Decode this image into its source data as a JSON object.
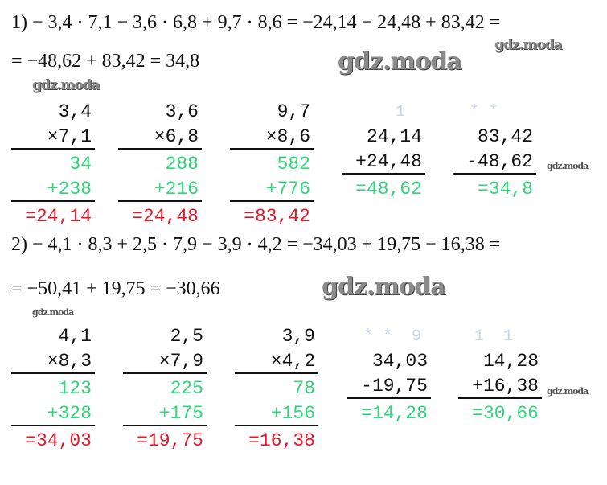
{
  "watermark": "gdz.moda",
  "problems": [
    {
      "equation_lines": [
        "1) − 3,4 · 7,1 − 3,6 · 6,8 + 9,7 · 8,6 = −24,14 − 24,48 + 83,42 =",
        "= −48,62 + 83,42 = 34,8"
      ],
      "columns": [
        {
          "rows": [
            {
              "text": "3,4",
              "color": "black"
            },
            {
              "text": "×7,1",
              "color": "black",
              "rule": true
            },
            {
              "text": "34",
              "color": "green"
            },
            {
              "text": "+238",
              "color": "green",
              "rule": true
            },
            {
              "text": "=24,14",
              "color": "red"
            }
          ]
        },
        {
          "rows": [
            {
              "text": "3,6",
              "color": "black"
            },
            {
              "text": "×6,8",
              "color": "black",
              "rule": true
            },
            {
              "text": "288",
              "color": "green"
            },
            {
              "text": "+216",
              "color": "green",
              "rule": true
            },
            {
              "text": "=24,48",
              "color": "red"
            }
          ]
        },
        {
          "rows": [
            {
              "text": "9,7",
              "color": "black"
            },
            {
              "text": "×8,6",
              "color": "black",
              "rule": true
            },
            {
              "text": "582",
              "color": "green"
            },
            {
              "text": "+776",
              "color": "green",
              "rule": true
            },
            {
              "text": "=83,42",
              "color": "red"
            }
          ]
        },
        {
          "carry": "1",
          "rows": [
            {
              "text": "24,14",
              "color": "black"
            },
            {
              "text": "+24,48",
              "color": "black",
              "rule": true
            },
            {
              "text": "=48,62",
              "color": "green"
            }
          ]
        },
        {
          "carry": "* *",
          "rows": [
            {
              "text": "83,42",
              "color": "black"
            },
            {
              "text": "-48,62",
              "color": "black",
              "rule": true
            },
            {
              "text": "=34,8",
              "color": "green"
            }
          ]
        }
      ]
    },
    {
      "equation_lines": [
        "2) − 4,1 · 8,3 + 2,5 · 7,9 − 3,9 · 4,2 = −34,03 + 19,75 − 16,38 =",
        "= −50,41 + 19,75 = −30,66"
      ],
      "columns": [
        {
          "rows": [
            {
              "text": "4,1",
              "color": "black"
            },
            {
              "text": "×8,3",
              "color": "black",
              "rule": true
            },
            {
              "text": "123",
              "color": "green"
            },
            {
              "text": "+328",
              "color": "green",
              "rule": true
            },
            {
              "text": "=34,03",
              "color": "red"
            }
          ]
        },
        {
          "rows": [
            {
              "text": "2,5",
              "color": "black"
            },
            {
              "text": "×7,9",
              "color": "black",
              "rule": true
            },
            {
              "text": "225",
              "color": "green"
            },
            {
              "text": "+175",
              "color": "green",
              "rule": true
            },
            {
              "text": "=19,75",
              "color": "red"
            }
          ]
        },
        {
          "rows": [
            {
              "text": "3,9",
              "color": "black"
            },
            {
              "text": "×4,2",
              "color": "black",
              "rule": true
            },
            {
              "text": "78",
              "color": "green"
            },
            {
              "text": "+156",
              "color": "green",
              "rule": true
            },
            {
              "text": "=16,38",
              "color": "red"
            }
          ]
        },
        {
          "carry": "* *  9",
          "rows": [
            {
              "text": "34,03",
              "color": "black"
            },
            {
              "text": "-19,75",
              "color": "black",
              "rule": true
            },
            {
              "text": "=14,28",
              "color": "green"
            }
          ]
        },
        {
          "carry": "1  1",
          "rows": [
            {
              "text": "14,28",
              "color": "black"
            },
            {
              "text": "+16,38",
              "color": "black",
              "rule": true
            },
            {
              "text": "=30,66",
              "color": "green"
            }
          ]
        }
      ]
    }
  ],
  "colors": {
    "factors": "#111111",
    "partials": "#2fd67a",
    "products": "#e01a2a",
    "carries": "#c8d4ea"
  }
}
